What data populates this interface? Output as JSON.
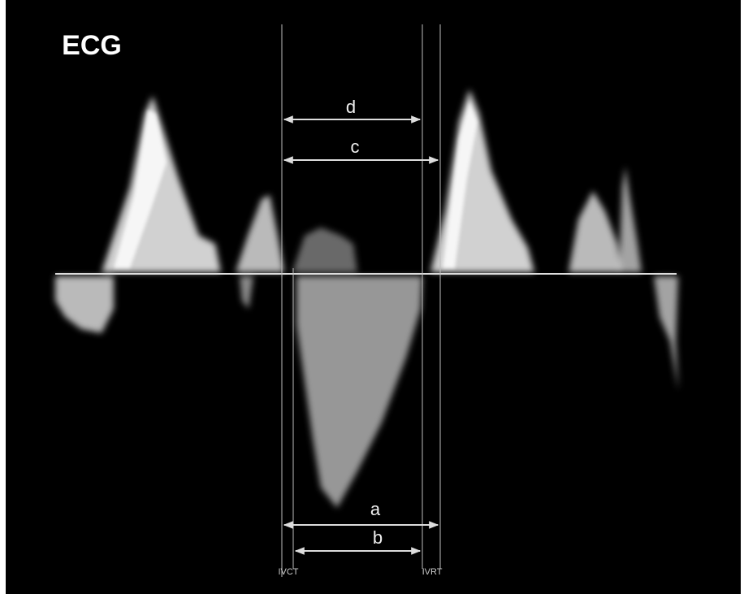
{
  "title": "ECG",
  "intervals": {
    "d": "d",
    "c": "c",
    "a": "a",
    "b": "b"
  },
  "markers": {
    "ivct": "IVCT",
    "ivrt": "IVRT"
  }
}
